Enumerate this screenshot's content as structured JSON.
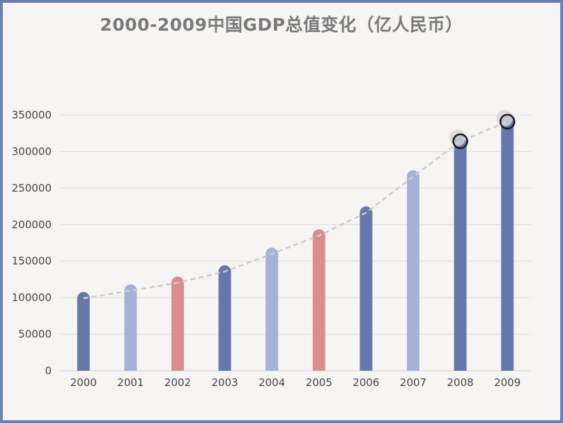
{
  "chart_data": {
    "type": "bar",
    "title": "2000-2009中国GDP总值变化（亿人民币）",
    "categories": [
      "2000",
      "2001",
      "2002",
      "2003",
      "2004",
      "2005",
      "2006",
      "2007",
      "2008",
      "2009"
    ],
    "values": [
      99215,
      109655,
      120333,
      135823,
      159878,
      184937,
      216314,
      265810,
      314045,
      340903
    ],
    "ylim": [
      0,
      350000
    ],
    "yticks": [
      "0",
      "50000",
      "100000",
      "150000",
      "200000",
      "250000",
      "300000",
      "350000"
    ],
    "grid": true,
    "trend_line": "dashed",
    "highlighted": [
      "2008",
      "2009"
    ],
    "bar_colors": [
      "#6479aa",
      "#a5b2d6",
      "#db8d8d",
      "#6479aa",
      "#a5b2d6",
      "#db8d8d",
      "#6479aa",
      "#a5b2d6",
      "#6479aa",
      "#6479aa"
    ],
    "colors": {
      "grid": "#dcdcdc",
      "trend": "#cccccc",
      "frame": "#6a7fb3"
    }
  }
}
